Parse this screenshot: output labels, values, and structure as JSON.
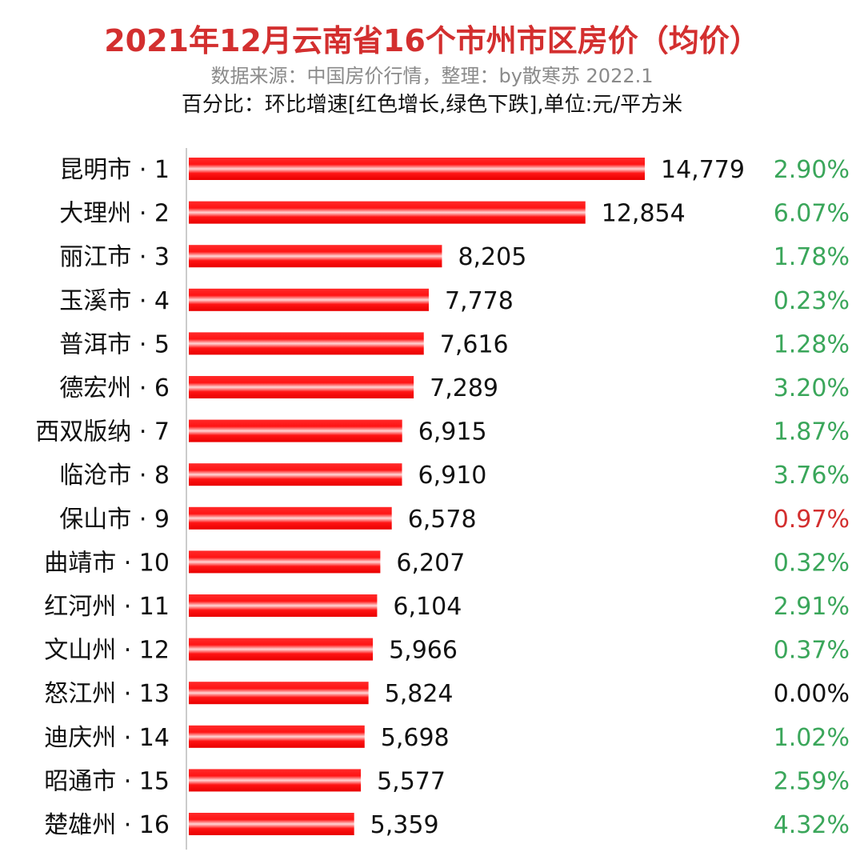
{
  "header": {
    "title": "2021年12月云南省16个市州市区房价（均价）",
    "source": "数据来源：中国房价行情，整理：by散寒苏 2022.1",
    "legend": "百分比：环比增速[红色增长,绿色下跌],单位:元/平方米"
  },
  "colors": {
    "bar": "#ff1a1a",
    "bar_highlight": "#ffd0d0",
    "title": "#d32f2f",
    "up": "#d32f2f",
    "down": "#3aa65a",
    "neutral": "#111111",
    "axis": "#cccccc"
  },
  "chart_data": {
    "type": "bar",
    "orientation": "horizontal",
    "title": "2021年12月云南省16个市州市区房价（均价）",
    "unit": "元/平方米",
    "xlim": [
      0,
      14779
    ],
    "categories": [
      "昆明市 · 1",
      "大理州 · 2",
      "丽江市 · 3",
      "玉溪市 · 4",
      "普洱市 · 5",
      "德宏州 · 6",
      "西双版纳 · 7",
      "临沧市 · 8",
      "保山市 · 9",
      "曲靖市 · 10",
      "红河州 · 11",
      "文山州 · 12",
      "怒江州 · 13",
      "迪庆州 · 14",
      "昭通市 · 15",
      "楚雄州 · 16"
    ],
    "values": [
      14779,
      12854,
      8205,
      7778,
      7616,
      7289,
      6915,
      6910,
      6578,
      6207,
      6104,
      5966,
      5824,
      5698,
      5577,
      5359
    ],
    "value_labels": [
      "14,779",
      "12,854",
      "8,205",
      "7,778",
      "7,616",
      "7,289",
      "6,915",
      "6,910",
      "6,578",
      "6,207",
      "6,104",
      "5,966",
      "5,824",
      "5,698",
      "5,577",
      "5,359"
    ],
    "mom_change_labels": [
      "2.90%",
      "6.07%",
      "1.78%",
      "0.23%",
      "1.28%",
      "3.20%",
      "1.87%",
      "3.76%",
      "0.97%",
      "0.32%",
      "2.91%",
      "0.37%",
      "0.00%",
      "1.02%",
      "2.59%",
      "4.32%"
    ],
    "mom_change_direction": [
      "down",
      "down",
      "down",
      "down",
      "down",
      "down",
      "down",
      "down",
      "up",
      "down",
      "down",
      "down",
      "flat",
      "down",
      "down",
      "down"
    ]
  }
}
